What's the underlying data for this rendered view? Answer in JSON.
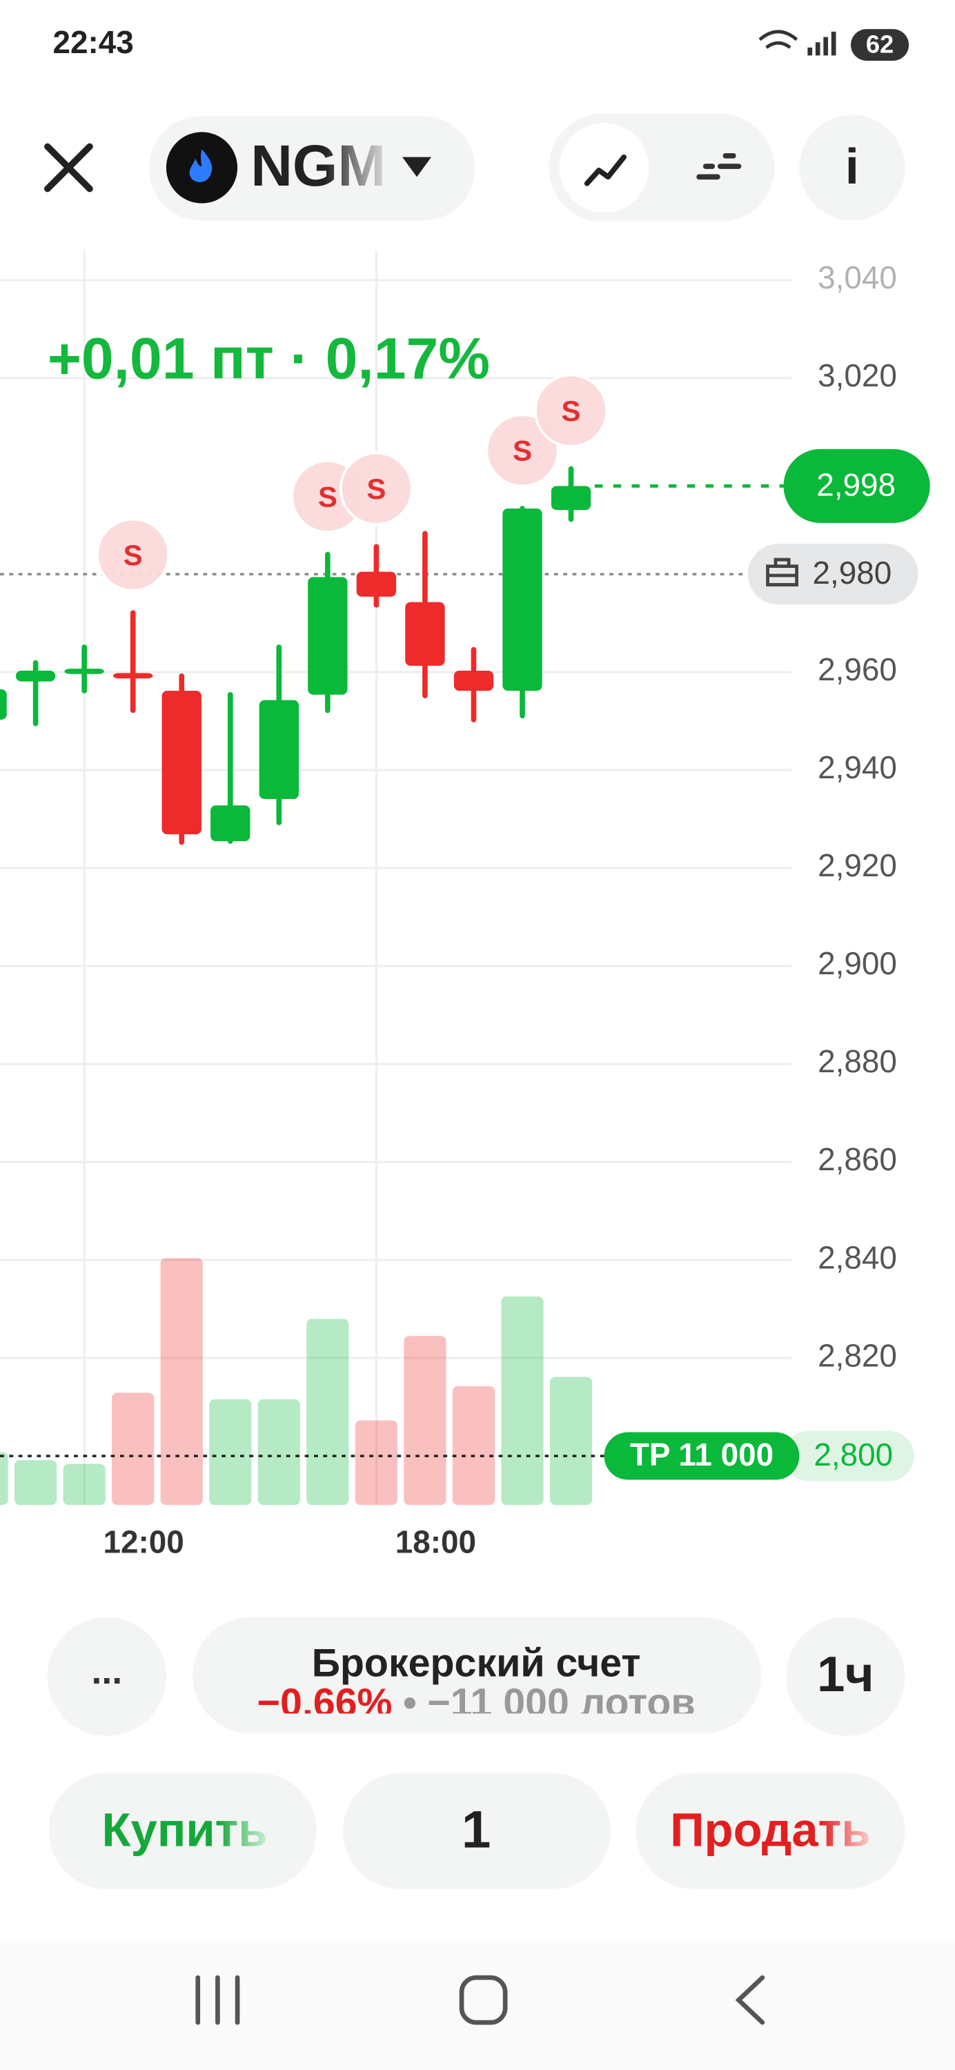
{
  "status_bar": {
    "time": "22:43",
    "battery": "62"
  },
  "header": {
    "ticker": "NGM"
  },
  "chart_data": {
    "type": "candlestick",
    "change_label": "+0,01 пт · 0,17%",
    "categories": [
      null,
      null,
      "12:00",
      null,
      null,
      null,
      null,
      null,
      "18:00",
      null,
      null,
      null,
      null
    ],
    "open": [
      2950.3,
      2958.1,
      2960.5,
      2959.8,
      2956.2,
      2925.5,
      2934.1,
      2955.4,
      2980.5,
      2974.3,
      2960.3,
      2956.2,
      2993.1
    ],
    "high": [
      2958.0,
      2961.9,
      2965.1,
      2972.1,
      2959.2,
      2955.4,
      2965.1,
      2984.0,
      2985.6,
      2988.3,
      2964.6,
      2993.4,
      3001.5
    ],
    "low": [
      2949.0,
      2949.5,
      2956.2,
      2952.2,
      2925.3,
      2925.5,
      2929.3,
      2952.2,
      2973.7,
      2955.2,
      2950.3,
      2951.1,
      2991.2
    ],
    "close": [
      2956.5,
      2960.3,
      2960.7,
      2959.2,
      2926.9,
      2932.8,
      2954.3,
      2979.4,
      2975.4,
      2961.3,
      2956.2,
      2993.4,
      2998.0
    ],
    "volume": [
      40,
      34,
      31,
      85,
      187,
      80,
      80,
      141,
      64,
      128,
      90,
      158,
      97
    ],
    "volume_lim": [
      0,
      250
    ],
    "ylim": [
      2790,
      3046
    ],
    "yticks": [
      {
        "value": 3040,
        "label": "3,040"
      },
      {
        "value": 3020,
        "label": "3,020"
      },
      {
        "value": 2960,
        "label": "2,960"
      },
      {
        "value": 2940,
        "label": "2,940"
      },
      {
        "value": 2920,
        "label": "2,920"
      },
      {
        "value": 2900,
        "label": "2,900"
      },
      {
        "value": 2880,
        "label": "2,880"
      },
      {
        "value": 2860,
        "label": "2,860"
      },
      {
        "value": 2840,
        "label": "2,840"
      },
      {
        "value": 2820,
        "label": "2,820"
      }
    ],
    "grid": true,
    "up_color": "#0ab83a",
    "down_color": "#ee2a2a",
    "levels": [
      {
        "value": 2998,
        "label": "2,998",
        "color": "#0ab83a"
      },
      {
        "value": 2980,
        "label": "2,980",
        "color": "#8a8a8a"
      },
      {
        "value": 2800,
        "label": "2,800",
        "tag": "TP 11 000",
        "color": "#0ab83a"
      }
    ],
    "trade_markers": [
      null,
      null,
      null,
      "S",
      null,
      null,
      null,
      "S",
      "S",
      null,
      null,
      "S",
      "S"
    ]
  },
  "controls": {
    "more": "...",
    "account": {
      "name": "Брокерский счет",
      "change": "−0,66%",
      "separator": "•",
      "lots": "−11 000 лотов"
    },
    "interval": "1ч",
    "buy": "Купить",
    "quantity": "1",
    "sell": "Продать"
  }
}
